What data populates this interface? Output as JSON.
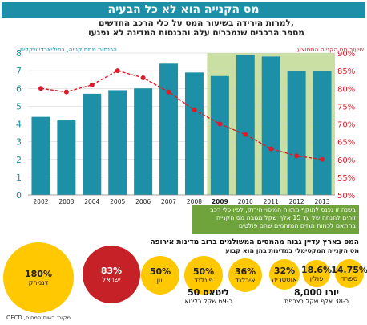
{
  "header": {
    "title": "מס הקנייה הוא לא כל הבעיה",
    "subtitle_line1": "למרות הירידה בשיעור המס על כלי הרכב החדשים,",
    "subtitle_line2": "מספר הרכבים שנמכרים עלה והכנסות המדינה לא נפגעו"
  },
  "chart_data": {
    "type": "bar",
    "categories": [
      "2002",
      "2003",
      "2004",
      "2005",
      "2006",
      "2007",
      "2008",
      "2009",
      "2010",
      "2011",
      "2012",
      "2013"
    ],
    "series": [
      {
        "name": "הכנסות ממס קנייה, במיליארדי שקלים",
        "type": "bar",
        "axis": "left",
        "color": "#1d8fa6",
        "values": [
          4.4,
          4.2,
          5.7,
          5.9,
          6.0,
          7.4,
          6.9,
          6.7,
          7.9,
          7.8,
          7.0,
          7.0
        ]
      },
      {
        "name": "שיעור מס הקנייה הממוצע",
        "type": "line",
        "axis": "right",
        "color": "#d81e2c",
        "values": [
          80,
          79,
          81,
          85,
          83,
          79,
          74,
          70,
          67,
          63,
          61,
          60
        ]
      }
    ],
    "left_axis": {
      "ticks": [
        0,
        1,
        2,
        3,
        4,
        5,
        6,
        7,
        8
      ],
      "range": [
        0,
        8
      ]
    },
    "right_axis": {
      "ticks": [
        "50%",
        "55%",
        "60%",
        "65%",
        "70%",
        "75%",
        "80%",
        "85%",
        "90%"
      ],
      "range": [
        50,
        90
      ]
    },
    "highlight_from_year": "2009",
    "highlight_color": "#c9dfa3"
  },
  "labels": {
    "left_axis_title": "הכנסות ממס קנייה, במיליארדי שקלים",
    "right_axis_title": "שיעור מס הקנייה הממוצע",
    "note": "בשנה זו נכנס לתוקף מתווה המיסוי הירוק, לפיו כלי רכב זוהים להנחה של עד 15 אלף שקל מגובה מס הקנייה בהתאם לכמות הגזים המזהמים שהם פולטים"
  },
  "section2": {
    "title": "המס בארץ עדיין גבוה מהמסים המשולמים ברוב מדינות אירופה",
    "subtitle": "מס הקנייה המקסימלי במדינות בהן הוא קבוע",
    "countries": [
      {
        "value": "180%",
        "name": "דנמרק",
        "color": "#ffc800"
      },
      {
        "value": "83%",
        "name": "ישראל",
        "color": "#c62127"
      },
      {
        "value": "50%",
        "name": "יוון",
        "color": "#ffc800"
      },
      {
        "value": "50%",
        "name": "פינלנד",
        "color": "#ffc800"
      },
      {
        "value": "36%",
        "name": "אירלנד",
        "color": "#ffc800"
      },
      {
        "value": "32%",
        "name": "אוסטריה",
        "color": "#ffc800"
      },
      {
        "value": "18.6%",
        "name": "פולין",
        "color": "#ffc800"
      },
      {
        "value": "14.75%",
        "name": "ספרד",
        "color": "#ffc800"
      }
    ],
    "extra_left": {
      "value": "50 ליטאס",
      "note": "כ-69 שקל בליטא"
    },
    "extra_right": {
      "value": "8,000 יורו",
      "note": "כ-38 אלף שקל בצרפת"
    }
  },
  "source": "מקור: רשות המסים, OECD"
}
